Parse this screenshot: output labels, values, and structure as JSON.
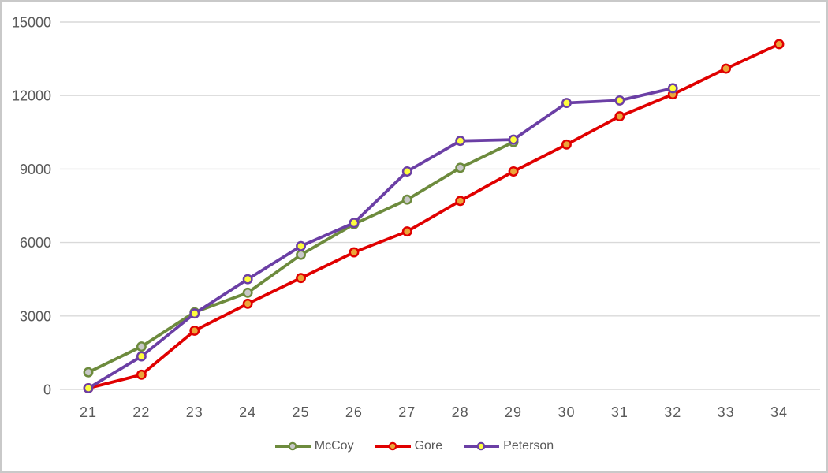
{
  "chart_data": {
    "type": "line",
    "title": "",
    "xlabel": "",
    "ylabel": "",
    "xlim": [
      21,
      34
    ],
    "ylim": [
      0,
      15000
    ],
    "x_ticks": [
      21,
      22,
      23,
      24,
      25,
      26,
      27,
      28,
      29,
      30,
      31,
      32,
      33,
      34
    ],
    "y_ticks": [
      0,
      3000,
      6000,
      9000,
      12000,
      15000
    ],
    "grid": true,
    "legend_position": "bottom",
    "series": [
      {
        "name": "McCoy",
        "line_color": "#6d8b3d",
        "marker_fill": "#c8c8c8",
        "x": [
          21,
          22,
          23,
          24,
          25,
          26,
          27,
          28,
          29
        ],
        "values": [
          700,
          1750,
          3150,
          3950,
          5500,
          6750,
          7750,
          9050,
          10100
        ]
      },
      {
        "name": "Gore",
        "line_color": "#e00000",
        "marker_fill": "#eba63a",
        "x": [
          21,
          22,
          23,
          24,
          25,
          26,
          27,
          28,
          29,
          30,
          31,
          32,
          33,
          34
        ],
        "values": [
          50,
          600,
          2400,
          3500,
          4550,
          5600,
          6450,
          7700,
          8900,
          10000,
          11150,
          12050,
          13100,
          14100
        ]
      },
      {
        "name": "Peterson",
        "line_color": "#6b3fa5",
        "marker_fill": "#feff3d",
        "x": [
          21,
          22,
          23,
          24,
          25,
          26,
          27,
          28,
          29,
          30,
          31,
          32
        ],
        "values": [
          50,
          1350,
          3100,
          4500,
          5850,
          6800,
          8900,
          10150,
          10200,
          11700,
          11800,
          12300
        ]
      }
    ],
    "style": {
      "grid_color": "#d9d9d9",
      "tick_label_color": "#595959",
      "frame_border_color": "#c9c9c9",
      "background": "#ffffff"
    }
  }
}
